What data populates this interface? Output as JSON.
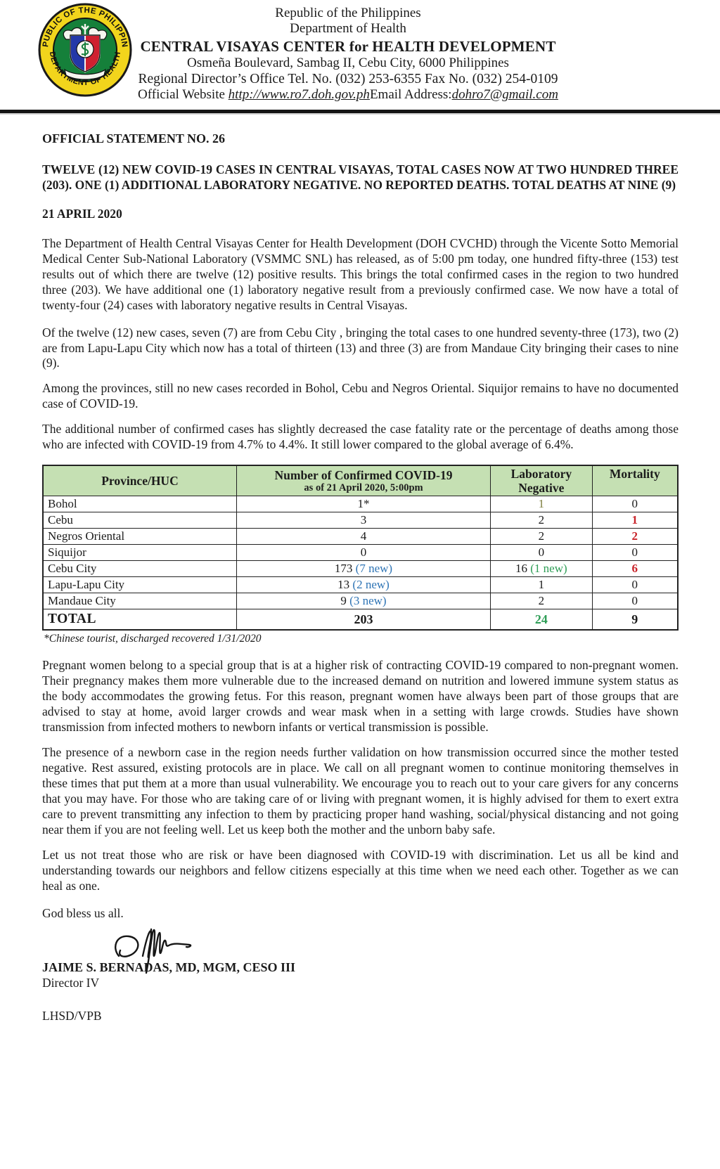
{
  "letterhead": {
    "line1": "Republic of the Philippines",
    "line2": "Department of Health",
    "line3": "CENTRAL VISAYAS CENTER for HEALTH DEVELOPMENT",
    "line4": "Osmeña Boulevard, Sambag II, Cebu City, 6000 Philippines",
    "line5": "Regional Director’s Office Tel. No. (032) 253-6355 Fax No. (032) 254-0109",
    "website_label": "Official Website ",
    "website_url": "http://www.ro7.doh.gov.ph",
    "email_label": "Email Address:",
    "email": "dohro7@gmail.com",
    "seal_top": "REPUBLIC OF THE PHILIPPINES",
    "seal_bottom": "DEPARTMENT OF HEALTH"
  },
  "statement_no": "OFFICIAL STATEMENT NO. 26",
  "headline": "TWELVE (12) NEW COVID-19 CASES IN CENTRAL VISAYAS, TOTAL CASES NOW AT TWO HUNDRED THREE (203). ONE (1) ADDITIONAL LABORATORY NEGATIVE. NO REPORTED DEATHS.  TOTAL DEATHS AT NINE (9)",
  "date": "21 APRIL 2020",
  "paragraphs": [
    "The Department of Health Central Visayas Center for Health Development (DOH CVCHD) through the Vicente Sotto Memorial Medical Center Sub-National Laboratory (VSMMC SNL) has released, as of 5:00 pm today, one hundred fifty-three (153) test results out of which there are twelve (12) positive results. This brings the total confirmed cases in the region to two hundred three (203). We have additional one (1) laboratory negative result from a previously confirmed case. We now have a total of twenty-four (24) cases with laboratory negative results in Central Visayas.",
    "Of the twelve (12) new cases, seven (7) are from Cebu City , bringing the total cases to one hundred seventy-three (173), two (2) are from  Lapu-Lapu City  which now has a  total of  thirteen (13) and  three (3) are from Mandaue City bringing their  cases to nine (9).",
    "Among the provinces, still no new cases recorded in Bohol, Cebu and Negros Oriental. Siquijor remains to have no documented case of COVID-19.",
    "The additional number of confirmed cases has slightly decreased the case fatality rate or the percentage of deaths among those who are infected with COVID-19 from 4.7% to 4.4%. It still lower compared to the global average of 6.4%.",
    "Pregnant women belong to a special group that is at a higher risk of contracting COVID-19 compared to non-pregnant women. Their pregnancy makes them more vulnerable due to the increased demand on nutrition and lowered immune system status as the body accommodates the growing fetus. For this reason, pregnant women have always been part of those groups that are advised to stay at home, avoid larger crowds and wear mask when in a setting with large crowds. Studies have shown transmission from infected mothers to newborn infants or vertical transmission is possible.",
    "The presence of a newborn case in the region needs further validation on how transmission occurred since the mother tested negative. Rest assured, existing protocols are in place. We call on all pregnant women to continue monitoring themselves in these times that put them at a more than usual vulnerability. We encourage you to reach out to your care givers for any concerns that you may have. For those who are taking care of or living with pregnant women, it is highly advised for them to exert extra care to prevent transmitting any infection to them by practicing proper hand washing, social/physical distancing and not going near them  if you are not feeling well. Let us keep both the mother and the unborn baby safe.",
    "Let us not treat those who are risk or have been diagnosed with COVID-19 with discrimination. Let us all be kind and understanding towards our neighbors and fellow citizens especially at this time when we need each other. Together as we can heal as one."
  ],
  "table": {
    "header": {
      "col1": "Province/HUC",
      "col2_line1": "Number of Confirmed COVID-19",
      "col2_line2": "as of 21 April 2020, 5:00pm",
      "col3_line1": "Laboratory",
      "col3_line2": "Negative",
      "col4": "Mortality"
    },
    "rows": [
      {
        "province": "Bohol",
        "cells": [
          [
            {
              "t": "1*"
            }
          ],
          [
            {
              "t": "1",
              "c": "accent_olive"
            }
          ],
          [
            {
              "t": "0"
            }
          ]
        ]
      },
      {
        "province": "Cebu",
        "cells": [
          [
            {
              "t": "3"
            }
          ],
          [
            {
              "t": "2"
            }
          ],
          [
            {
              "t": "1",
              "c": "accent_red",
              "b": true
            }
          ]
        ]
      },
      {
        "province": "Negros Oriental",
        "cells": [
          [
            {
              "t": "4"
            }
          ],
          [
            {
              "t": "2"
            }
          ],
          [
            {
              "t": "2",
              "c": "accent_red",
              "b": true
            }
          ]
        ]
      },
      {
        "province": "Siquijor",
        "cells": [
          [
            {
              "t": "0"
            }
          ],
          [
            {
              "t": "0"
            }
          ],
          [
            {
              "t": "0"
            }
          ]
        ]
      },
      {
        "province": "Cebu City",
        "cells": [
          [
            {
              "t": "173 "
            },
            {
              "t": "(7 new)",
              "c": "accent_blue"
            }
          ],
          [
            {
              "t": "16 "
            },
            {
              "t": "(1 new)",
              "c": "accent_green"
            }
          ],
          [
            {
              "t": "6",
              "c": "accent_red",
              "b": true
            }
          ]
        ]
      },
      {
        "province": "Lapu-Lapu City",
        "cells": [
          [
            {
              "t": "13 "
            },
            {
              "t": "(2 new)",
              "c": "accent_blue"
            }
          ],
          [
            {
              "t": "1"
            }
          ],
          [
            {
              "t": "0"
            }
          ]
        ]
      },
      {
        "province": "Mandaue City",
        "cells": [
          [
            {
              "t": "9 "
            },
            {
              "t": "(3 new)",
              "c": "accent_blue"
            }
          ],
          [
            {
              "t": "2"
            }
          ],
          [
            {
              "t": "0"
            }
          ]
        ]
      },
      {
        "province": "TOTAL",
        "total": true,
        "cells": [
          [
            {
              "t": "203"
            }
          ],
          [
            {
              "t": "24",
              "c": "accent_green",
              "b": true
            }
          ],
          [
            {
              "t": "9"
            }
          ]
        ]
      }
    ]
  },
  "footnote": "*Chinese tourist, discharged recovered 1/31/2020",
  "closing": "God bless us all.",
  "signatory": {
    "name": "JAIME S. BERNADAS, MD, MGM, CESO III",
    "title": "Director IV"
  },
  "initials": "LHSD/VPB",
  "colors": {
    "accent_blue": "#2e74b5",
    "accent_green": "#2f9e57",
    "accent_red": "#c9252b",
    "accent_olive": "#7f7f40",
    "table_header_bg": "#c5e0b3",
    "seal_yellow": "#f2d51c",
    "seal_green": "#15803a"
  }
}
